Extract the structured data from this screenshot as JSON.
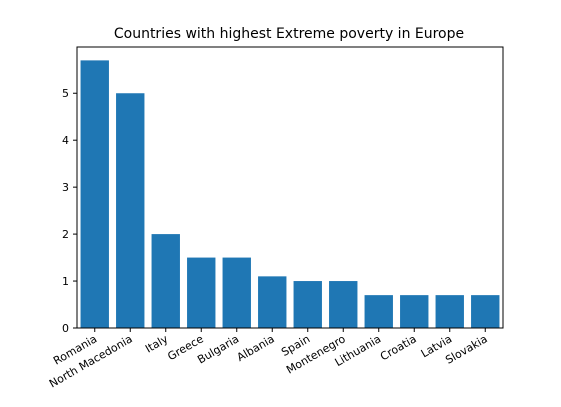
{
  "chart_data": {
    "type": "bar",
    "title": "Countries with highest Extreme poverty  in Europe",
    "xlabel": "",
    "ylabel": "",
    "categories": [
      "Romania",
      "North Macedonia",
      "Italy",
      "Greece",
      "Bulgaria",
      "Albania",
      "Spain",
      "Montenegro",
      "Lithuania",
      "Croatia",
      "Latvia",
      "Slovakia"
    ],
    "values": [
      5.7,
      5.0,
      2.0,
      1.5,
      1.5,
      1.1,
      1.0,
      1.0,
      0.7,
      0.7,
      0.7,
      0.7
    ],
    "ylim": [
      0,
      5.985
    ],
    "yticks": [
      0,
      1,
      2,
      3,
      4,
      5
    ],
    "bar_color": "#1f77b4",
    "grid": false,
    "legend": "none"
  }
}
